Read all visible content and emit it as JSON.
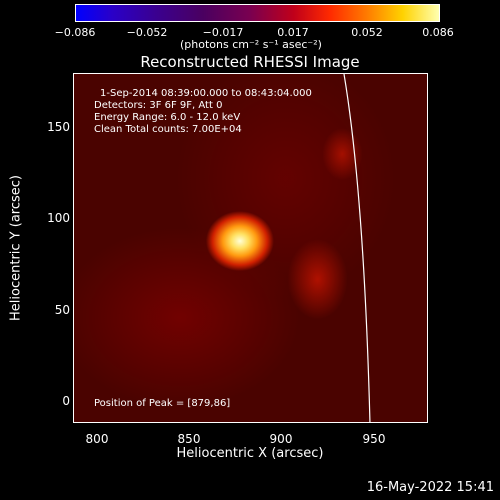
{
  "colorbar": {
    "ticks": [
      "−0.086",
      "−0.052",
      "−0.017",
      "0.017",
      "0.052",
      "0.086"
    ],
    "units": "(photons cm⁻² s⁻¹ asec⁻²)"
  },
  "title": "Reconstructed RHESSI Image",
  "annotations": {
    "time": "1-Sep-2014 08:39:00.000 to 08:43:04.000",
    "detectors": "Detectors: 3F 6F 9F, Att 0",
    "energy": "Energy Range: 6.0 - 12.0 keV",
    "clean": "Clean    Total counts: 7.00E+04",
    "peak": "Position of Peak = [879,86]"
  },
  "x_axis": {
    "label": "Heliocentric X (arcsec)",
    "ticks": [
      "800",
      "850",
      "900",
      "950"
    ]
  },
  "y_axis": {
    "label": "Heliocentric Y (arcsec)",
    "ticks": [
      "0",
      "50",
      "100",
      "150"
    ]
  },
  "timestamp": "16-May-2022 15:41"
}
